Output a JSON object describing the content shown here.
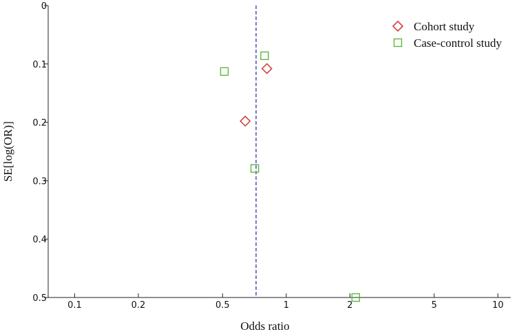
{
  "chart_data": {
    "type": "scatter",
    "title": "",
    "xlabel": "Odds ratio",
    "ylabel": "SE[log(OR)]",
    "x_scale": "log",
    "x_ticks": [
      0.1,
      0.2,
      0.5,
      1,
      2,
      5,
      10
    ],
    "x_tick_labels": [
      "0.1",
      "0.2",
      "0.5",
      "1",
      "2",
      "5",
      "10"
    ],
    "xlim": [
      0.075,
      11.5
    ],
    "y_ticks": [
      0,
      0.1,
      0.2,
      0.3,
      0.4,
      0.5
    ],
    "y_tick_labels": [
      "0",
      "0.1",
      "0.2",
      "0.3",
      "0.4",
      "0.5"
    ],
    "ylim": [
      0,
      0.5
    ],
    "y_reversed": true,
    "grid": false,
    "reference_line": {
      "x": 0.72,
      "style": "dashed",
      "color": "#3a46b0"
    },
    "legend_position": "top-right",
    "series": [
      {
        "name": "Cohort study",
        "marker": "diamond",
        "color": "#d2403f",
        "points": [
          {
            "x": 0.81,
            "y": 0.108
          },
          {
            "x": 0.64,
            "y": 0.198
          }
        ]
      },
      {
        "name": "Case-control study",
        "marker": "square",
        "color": "#5cb83a",
        "points": [
          {
            "x": 0.79,
            "y": 0.086
          },
          {
            "x": 0.51,
            "y": 0.113
          },
          {
            "x": 0.71,
            "y": 0.279
          },
          {
            "x": 2.13,
            "y": 0.5
          }
        ]
      }
    ]
  }
}
